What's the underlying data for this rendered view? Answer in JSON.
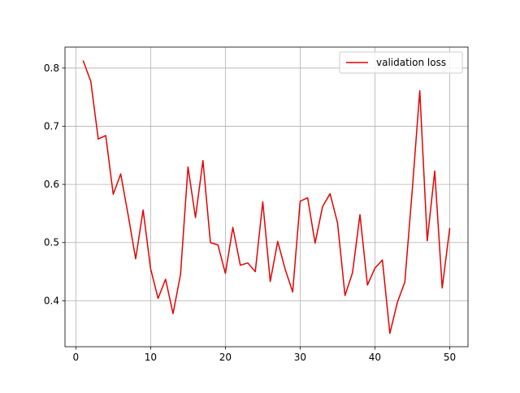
{
  "chart_data": {
    "type": "line",
    "title": "",
    "xlabel": "",
    "ylabel": "",
    "xlim": [
      -1.45,
      52.45
    ],
    "ylim": [
      0.321,
      0.836
    ],
    "xticks": [
      0,
      10,
      20,
      30,
      40,
      50
    ],
    "xtick_labels": [
      "0",
      "10",
      "20",
      "30",
      "40",
      "50"
    ],
    "yticks": [
      0.4,
      0.5,
      0.6,
      0.7,
      0.8
    ],
    "ytick_labels": [
      "0.4",
      "0.5",
      "0.6",
      "0.7",
      "0.8"
    ],
    "grid": true,
    "legend": {
      "position": "top-right",
      "entries": [
        "validation loss"
      ]
    },
    "series": [
      {
        "name": "validation loss",
        "color": "#e60000",
        "x": [
          1,
          2,
          3,
          4,
          5,
          6,
          7,
          8,
          9,
          10,
          11,
          12,
          13,
          14,
          15,
          16,
          17,
          18,
          19,
          20,
          21,
          22,
          23,
          24,
          25,
          26,
          27,
          28,
          29,
          30,
          31,
          32,
          33,
          34,
          35,
          36,
          37,
          38,
          39,
          40,
          41,
          42,
          43,
          44,
          45,
          46,
          47,
          48,
          49,
          50
        ],
        "values": [
          0.812,
          0.777,
          0.678,
          0.684,
          0.583,
          0.618,
          0.547,
          0.472,
          0.556,
          0.455,
          0.404,
          0.437,
          0.378,
          0.445,
          0.63,
          0.543,
          0.641,
          0.5,
          0.496,
          0.447,
          0.526,
          0.461,
          0.465,
          0.45,
          0.57,
          0.433,
          0.502,
          0.454,
          0.415,
          0.571,
          0.577,
          0.499,
          0.562,
          0.584,
          0.534,
          0.409,
          0.448,
          0.548,
          0.427,
          0.456,
          0.47,
          0.344,
          0.397,
          0.432,
          0.591,
          0.761,
          0.503,
          0.623,
          0.422,
          0.524
        ]
      }
    ]
  }
}
